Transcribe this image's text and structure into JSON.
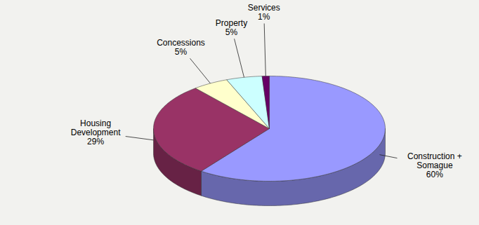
{
  "chart_data": {
    "type": "pie",
    "categories": [
      "Construction + Somague",
      "Housing Development",
      "Concessions",
      "Property",
      "Services"
    ],
    "values": [
      60,
      29,
      5,
      5,
      1
    ],
    "value_labels": [
      "60%",
      "29%",
      "5%",
      "5%",
      "1%"
    ],
    "colors": [
      "#9999ff",
      "#993366",
      "#ffffcc",
      "#ccffff",
      "#660066"
    ],
    "data_labels": true
  }
}
